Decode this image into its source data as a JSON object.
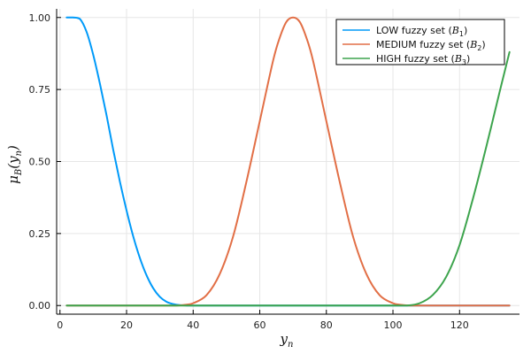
{
  "chart_data": {
    "type": "line",
    "title": "",
    "xlabel": "y_n",
    "ylabel": "μ_B(y_n)",
    "xlim": [
      -1,
      138
    ],
    "ylim": [
      -0.03,
      1.03
    ],
    "x_ticks": [
      0,
      20,
      40,
      60,
      80,
      100,
      120
    ],
    "y_ticks": [
      0.0,
      0.25,
      0.5,
      0.75,
      1.0
    ],
    "y_tick_labels": [
      "0.00",
      "0.25",
      "0.50",
      "0.75",
      "1.00"
    ],
    "grid": true,
    "legend_position": "top-right",
    "series": [
      {
        "name": "LOW fuzzy set (B1)",
        "color": "#009af9",
        "x": [
          2,
          4,
          6,
          8,
          10,
          12,
          14,
          16,
          18,
          20,
          22,
          24,
          26,
          28,
          30,
          32,
          34,
          36,
          38,
          40,
          60,
          80,
          100,
          120,
          135
        ],
        "y": [
          1.0,
          1.0,
          0.995,
          0.95,
          0.87,
          0.77,
          0.66,
          0.54,
          0.43,
          0.33,
          0.24,
          0.165,
          0.105,
          0.06,
          0.03,
          0.013,
          0.005,
          0.0015,
          0.0003,
          0.0,
          0.0,
          0.0,
          0.0,
          0.0,
          0.0
        ]
      },
      {
        "name": "MEDIUM fuzzy set (B2)",
        "color": "#e26f46",
        "x": [
          2,
          20,
          30,
          35,
          38,
          40,
          44,
          48,
          52,
          56,
          60,
          64,
          66,
          68,
          70,
          72,
          74,
          76,
          80,
          84,
          88,
          92,
          96,
          100,
          102,
          105,
          110,
          120,
          135
        ],
        "y": [
          0.0,
          0.0,
          0.0,
          0.0,
          0.003,
          0.008,
          0.036,
          0.11,
          0.24,
          0.43,
          0.64,
          0.85,
          0.93,
          0.985,
          1.0,
          0.985,
          0.93,
          0.85,
          0.64,
          0.43,
          0.24,
          0.11,
          0.036,
          0.008,
          0.003,
          0.0,
          0.0,
          0.0,
          0.0
        ]
      },
      {
        "name": "HIGH fuzzy set (B3)",
        "color": "#3da44d",
        "x": [
          2,
          40,
          80,
          100,
          104,
          108,
          112,
          116,
          120,
          124,
          128,
          132,
          135
        ],
        "y": [
          0.0,
          0.0,
          0.0,
          0.0,
          0.0,
          0.008,
          0.037,
          0.1,
          0.21,
          0.37,
          0.55,
          0.74,
          0.88
        ]
      }
    ]
  }
}
